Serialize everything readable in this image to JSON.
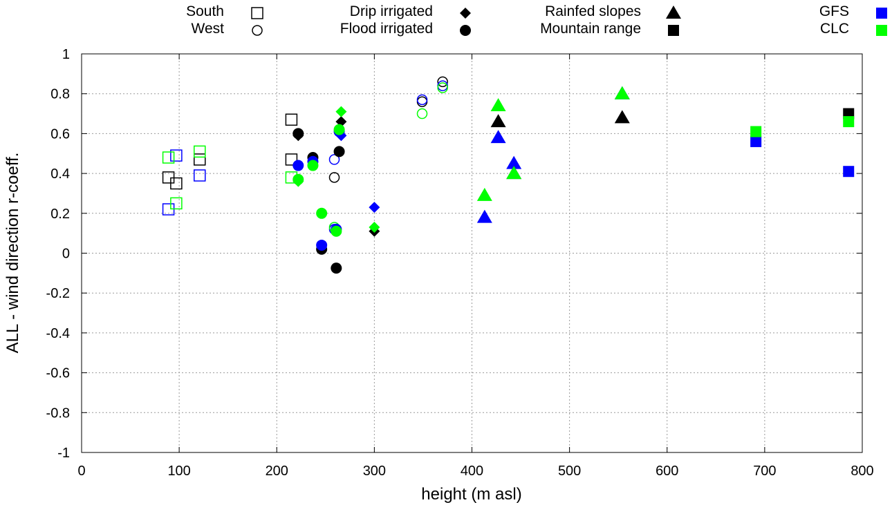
{
  "chart_data": {
    "type": "scatter",
    "title": "",
    "xlabel": "height (m asl)",
    "ylabel": "ALL - wind direction r-coeff.",
    "xlim": [
      0,
      800
    ],
    "ylim": [
      -1,
      1
    ],
    "xticks": [
      "0",
      "100",
      "200",
      "300",
      "400",
      "500",
      "600",
      "700",
      "800"
    ],
    "yticks": [
      "1",
      "0.8",
      "0.6",
      "0.4",
      "0.2",
      "0",
      "-0.2",
      "-0.4",
      "-0.6",
      "-0.8",
      "-1"
    ],
    "grid": true,
    "legend": {
      "placement": "top",
      "shapes": [
        {
          "label": "South",
          "shape": "open-square"
        },
        {
          "label": "West",
          "shape": "open-circle"
        },
        {
          "label": "Drip irrigated",
          "shape": "diamond"
        },
        {
          "label": "Flood irrigated",
          "shape": "circle"
        },
        {
          "label": "Rainfed slopes",
          "shape": "triangle"
        },
        {
          "label": "Mountain range",
          "shape": "square"
        }
      ],
      "colors": [
        {
          "label": "GFS",
          "color": "#0000ff"
        },
        {
          "label": "CLC",
          "color": "#00ff00"
        }
      ]
    },
    "colors": {
      "ALL": "#000000",
      "GFS": "#0000ff",
      "CLC": "#00ff00"
    },
    "series": [
      {
        "name": "South",
        "shape": "open-square",
        "points": [
          {
            "x": 89,
            "y": 0.38,
            "c": "ALL"
          },
          {
            "x": 97,
            "y": 0.35,
            "c": "ALL"
          },
          {
            "x": 121,
            "y": 0.47,
            "c": "ALL"
          },
          {
            "x": 215,
            "y": 0.67,
            "c": "ALL"
          },
          {
            "x": 215,
            "y": 0.47,
            "c": "ALL"
          },
          {
            "x": 89,
            "y": 0.22,
            "c": "GFS"
          },
          {
            "x": 97,
            "y": 0.49,
            "c": "GFS"
          },
          {
            "x": 121,
            "y": 0.39,
            "c": "GFS"
          },
          {
            "x": 89,
            "y": 0.48,
            "c": "CLC"
          },
          {
            "x": 97,
            "y": 0.25,
            "c": "CLC"
          },
          {
            "x": 121,
            "y": 0.51,
            "c": "CLC"
          },
          {
            "x": 215,
            "y": 0.38,
            "c": "CLC"
          }
        ]
      },
      {
        "name": "West",
        "shape": "open-circle",
        "points": [
          {
            "x": 259,
            "y": 0.38,
            "c": "ALL"
          },
          {
            "x": 349,
            "y": 0.76,
            "c": "ALL"
          },
          {
            "x": 370,
            "y": 0.86,
            "c": "ALL"
          },
          {
            "x": 259,
            "y": 0.47,
            "c": "GFS"
          },
          {
            "x": 259,
            "y": 0.12,
            "c": "GFS"
          },
          {
            "x": 349,
            "y": 0.77,
            "c": "GFS"
          },
          {
            "x": 370,
            "y": 0.84,
            "c": "GFS"
          },
          {
            "x": 259,
            "y": 0.13,
            "c": "CLC"
          },
          {
            "x": 349,
            "y": 0.7,
            "c": "CLC"
          },
          {
            "x": 370,
            "y": 0.83,
            "c": "CLC"
          }
        ]
      },
      {
        "name": "Drip irrigated",
        "shape": "diamond",
        "points": [
          {
            "x": 222,
            "y": 0.59,
            "c": "ALL"
          },
          {
            "x": 266,
            "y": 0.66,
            "c": "ALL"
          },
          {
            "x": 300,
            "y": 0.11,
            "c": "ALL"
          },
          {
            "x": 266,
            "y": 0.59,
            "c": "GFS"
          },
          {
            "x": 300,
            "y": 0.23,
            "c": "GFS"
          },
          {
            "x": 222,
            "y": 0.36,
            "c": "CLC"
          },
          {
            "x": 266,
            "y": 0.71,
            "c": "CLC"
          },
          {
            "x": 300,
            "y": 0.13,
            "c": "CLC"
          }
        ]
      },
      {
        "name": "Flood irrigated",
        "shape": "circle",
        "points": [
          {
            "x": 222,
            "y": 0.6,
            "c": "ALL"
          },
          {
            "x": 237,
            "y": 0.48,
            "c": "ALL"
          },
          {
            "x": 246,
            "y": 0.02,
            "c": "ALL"
          },
          {
            "x": 261,
            "y": -0.075,
            "c": "ALL"
          },
          {
            "x": 264,
            "y": 0.51,
            "c": "ALL"
          },
          {
            "x": 222,
            "y": 0.44,
            "c": "GFS"
          },
          {
            "x": 237,
            "y": 0.46,
            "c": "GFS"
          },
          {
            "x": 246,
            "y": 0.04,
            "c": "GFS"
          },
          {
            "x": 261,
            "y": 0.12,
            "c": "GFS"
          },
          {
            "x": 264,
            "y": 0.61,
            "c": "GFS"
          },
          {
            "x": 222,
            "y": 0.37,
            "c": "CLC"
          },
          {
            "x": 237,
            "y": 0.44,
            "c": "CLC"
          },
          {
            "x": 246,
            "y": 0.2,
            "c": "CLC"
          },
          {
            "x": 261,
            "y": 0.11,
            "c": "CLC"
          },
          {
            "x": 264,
            "y": 0.62,
            "c": "CLC"
          }
        ]
      },
      {
        "name": "Rainfed slopes",
        "shape": "triangle",
        "points": [
          {
            "x": 427,
            "y": 0.66,
            "c": "ALL"
          },
          {
            "x": 443,
            "y": 0.4,
            "c": "ALL"
          },
          {
            "x": 554,
            "y": 0.68,
            "c": "ALL"
          },
          {
            "x": 413,
            "y": 0.18,
            "c": "GFS"
          },
          {
            "x": 427,
            "y": 0.58,
            "c": "GFS"
          },
          {
            "x": 443,
            "y": 0.45,
            "c": "GFS"
          },
          {
            "x": 554,
            "y": 0.8,
            "c": "GFS"
          },
          {
            "x": 413,
            "y": 0.29,
            "c": "CLC"
          },
          {
            "x": 427,
            "y": 0.74,
            "c": "CLC"
          },
          {
            "x": 443,
            "y": 0.4,
            "c": "CLC"
          },
          {
            "x": 554,
            "y": 0.8,
            "c": "CLC"
          }
        ]
      },
      {
        "name": "Mountain range",
        "shape": "square",
        "points": [
          {
            "x": 786,
            "y": 0.7,
            "c": "ALL"
          },
          {
            "x": 691,
            "y": 0.56,
            "c": "GFS"
          },
          {
            "x": 786,
            "y": 0.41,
            "c": "GFS"
          },
          {
            "x": 691,
            "y": 0.61,
            "c": "CLC"
          },
          {
            "x": 786,
            "y": 0.66,
            "c": "CLC"
          }
        ]
      }
    ]
  }
}
